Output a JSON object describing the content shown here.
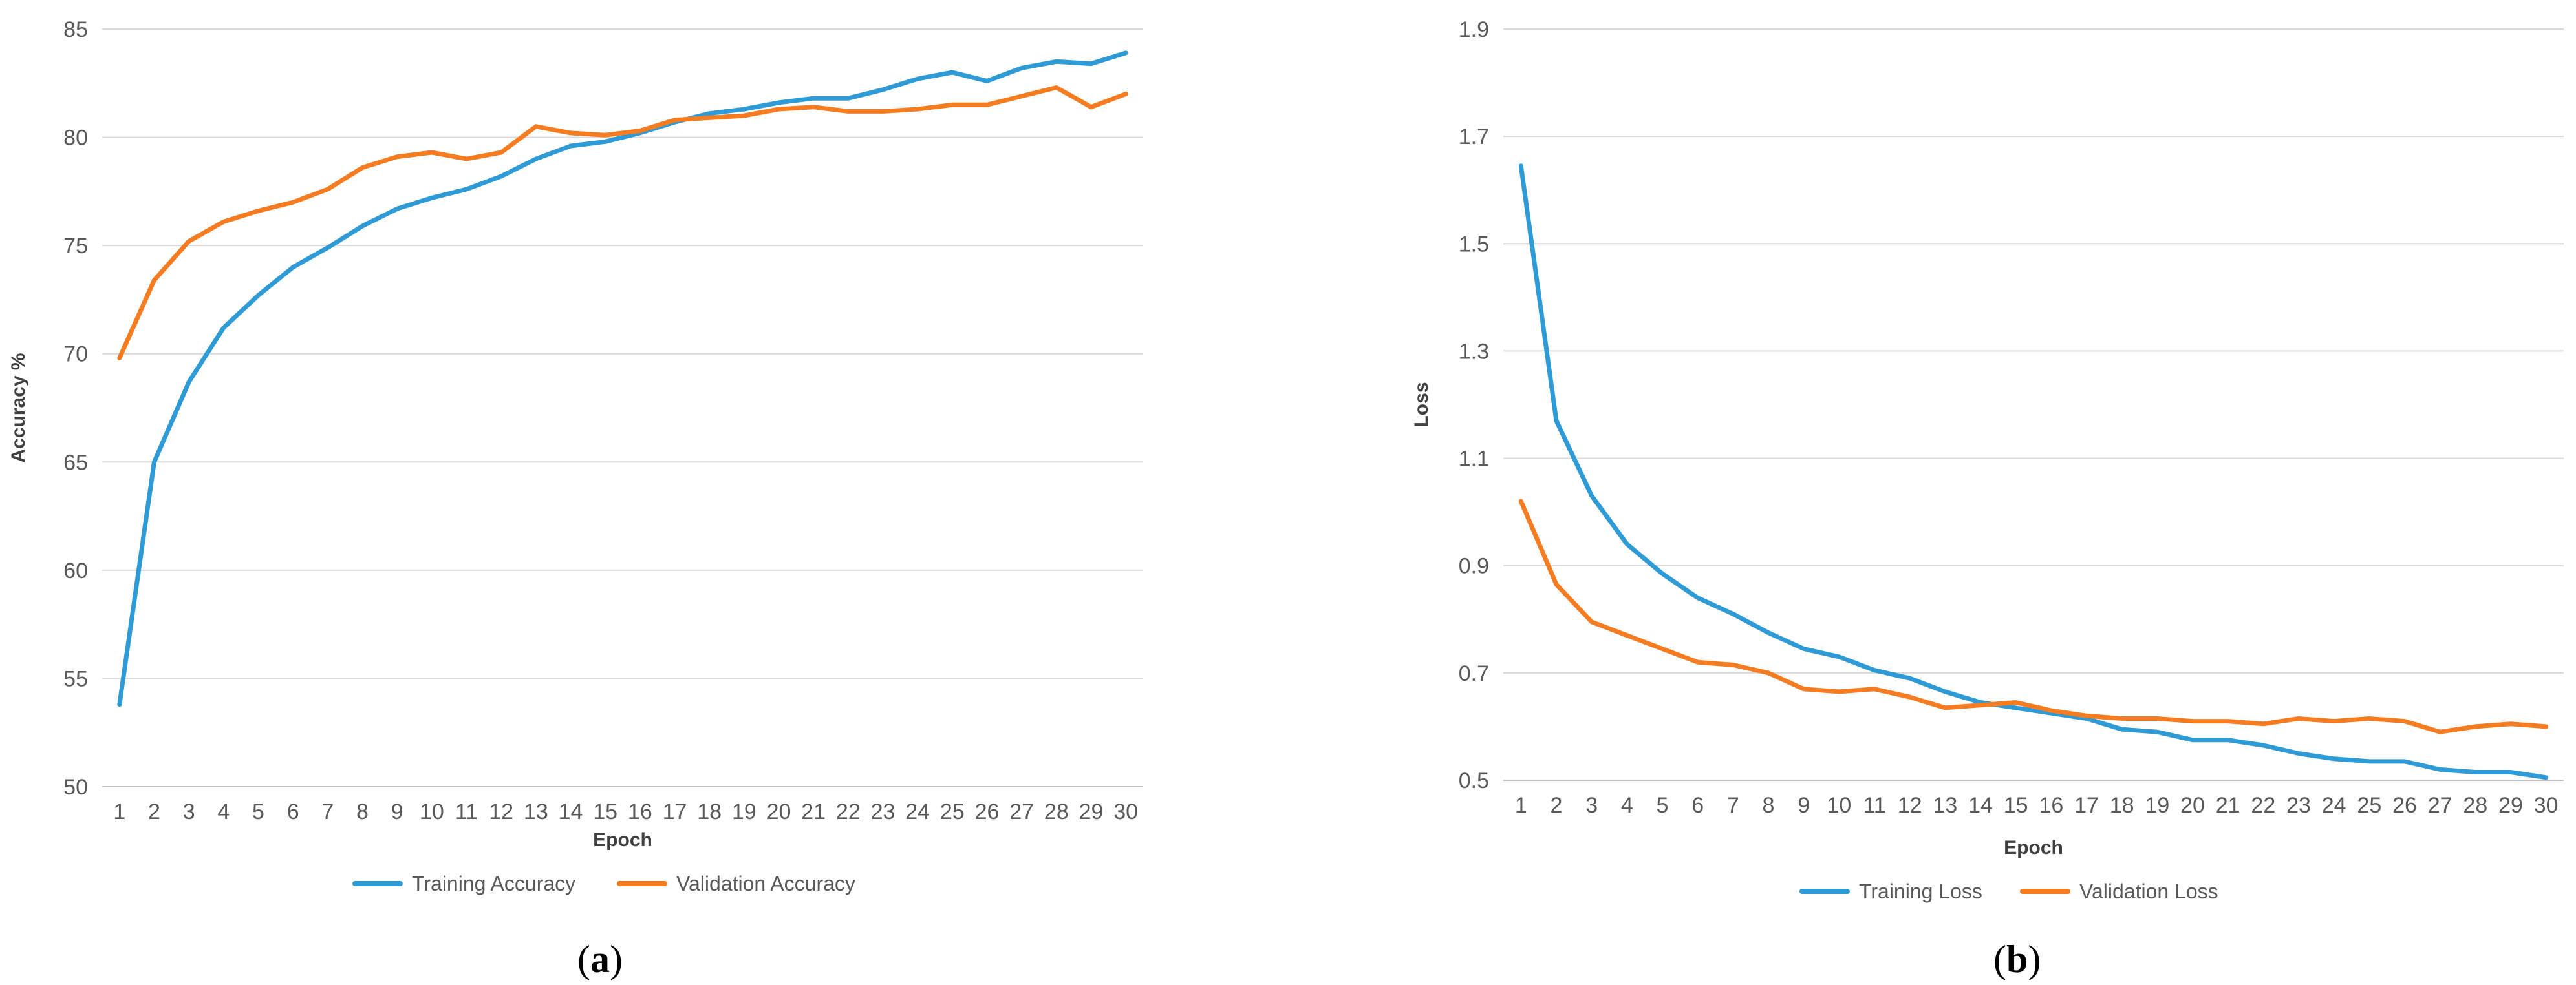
{
  "colors": {
    "training": "#2E9BD6",
    "validation": "#F57C20"
  },
  "chart_data": [
    {
      "type": "line",
      "panel_label": "a",
      "xlabel": "Epoch",
      "ylabel": "Accuracy %",
      "ylim": [
        50,
        85
      ],
      "yticks": [
        "50",
        "55",
        "60",
        "65",
        "70",
        "75",
        "80",
        "85"
      ],
      "x": [
        "1",
        "2",
        "3",
        "4",
        "5",
        "6",
        "7",
        "8",
        "9",
        "10",
        "11",
        "12",
        "13",
        "14",
        "15",
        "16",
        "17",
        "18",
        "19",
        "20",
        "21",
        "22",
        "23",
        "24",
        "25",
        "26",
        "27",
        "28",
        "29",
        "30"
      ],
      "grid": true,
      "legend": "bottom",
      "series": [
        {
          "name": "Training Accuracy",
          "values": [
            53.8,
            65.0,
            68.7,
            71.2,
            72.7,
            74.0,
            74.9,
            75.9,
            76.7,
            77.2,
            77.6,
            78.2,
            79.0,
            79.6,
            79.8,
            80.2,
            80.7,
            81.1,
            81.3,
            81.6,
            81.8,
            81.8,
            82.2,
            82.7,
            83.0,
            82.6,
            83.2,
            83.5,
            83.4,
            83.9
          ]
        },
        {
          "name": "Validation Accuracy",
          "values": [
            69.8,
            73.4,
            75.2,
            76.1,
            76.6,
            77.0,
            77.6,
            78.6,
            79.1,
            79.3,
            79.0,
            79.3,
            80.5,
            80.2,
            80.1,
            80.3,
            80.8,
            80.9,
            81.0,
            81.3,
            81.4,
            81.2,
            81.2,
            81.3,
            81.5,
            81.5,
            81.9,
            82.3,
            81.4,
            82.0
          ]
        }
      ]
    },
    {
      "type": "line",
      "panel_label": "b",
      "xlabel": "Epoch",
      "ylabel": "Loss",
      "ylim": [
        0.5,
        1.9
      ],
      "yticks": [
        "0.5",
        "0.7",
        "0.9",
        "1.1",
        "1.3",
        "1.5",
        "1.7",
        "1.9"
      ],
      "x": [
        "1",
        "2",
        "3",
        "4",
        "5",
        "6",
        "7",
        "8",
        "9",
        "10",
        "11",
        "12",
        "13",
        "14",
        "15",
        "16",
        "17",
        "18",
        "19",
        "20",
        "21",
        "22",
        "23",
        "24",
        "25",
        "26",
        "27",
        "28",
        "29",
        "30"
      ],
      "grid": true,
      "legend": "bottom",
      "series": [
        {
          "name": "Training Loss",
          "values": [
            1.645,
            1.17,
            1.03,
            0.94,
            0.885,
            0.84,
            0.81,
            0.775,
            0.745,
            0.73,
            0.705,
            0.69,
            0.665,
            0.645,
            0.635,
            0.625,
            0.615,
            0.595,
            0.59,
            0.575,
            0.575,
            0.565,
            0.55,
            0.54,
            0.535,
            0.535,
            0.52,
            0.515,
            0.515,
            0.505
          ]
        },
        {
          "name": "Validation Loss",
          "values": [
            1.02,
            0.865,
            0.795,
            0.77,
            0.745,
            0.72,
            0.715,
            0.7,
            0.67,
            0.665,
            0.67,
            0.655,
            0.635,
            0.64,
            0.645,
            0.63,
            0.62,
            0.615,
            0.615,
            0.61,
            0.61,
            0.605,
            0.615,
            0.61,
            0.615,
            0.61,
            0.59,
            0.6,
            0.605,
            0.6
          ]
        }
      ]
    }
  ]
}
